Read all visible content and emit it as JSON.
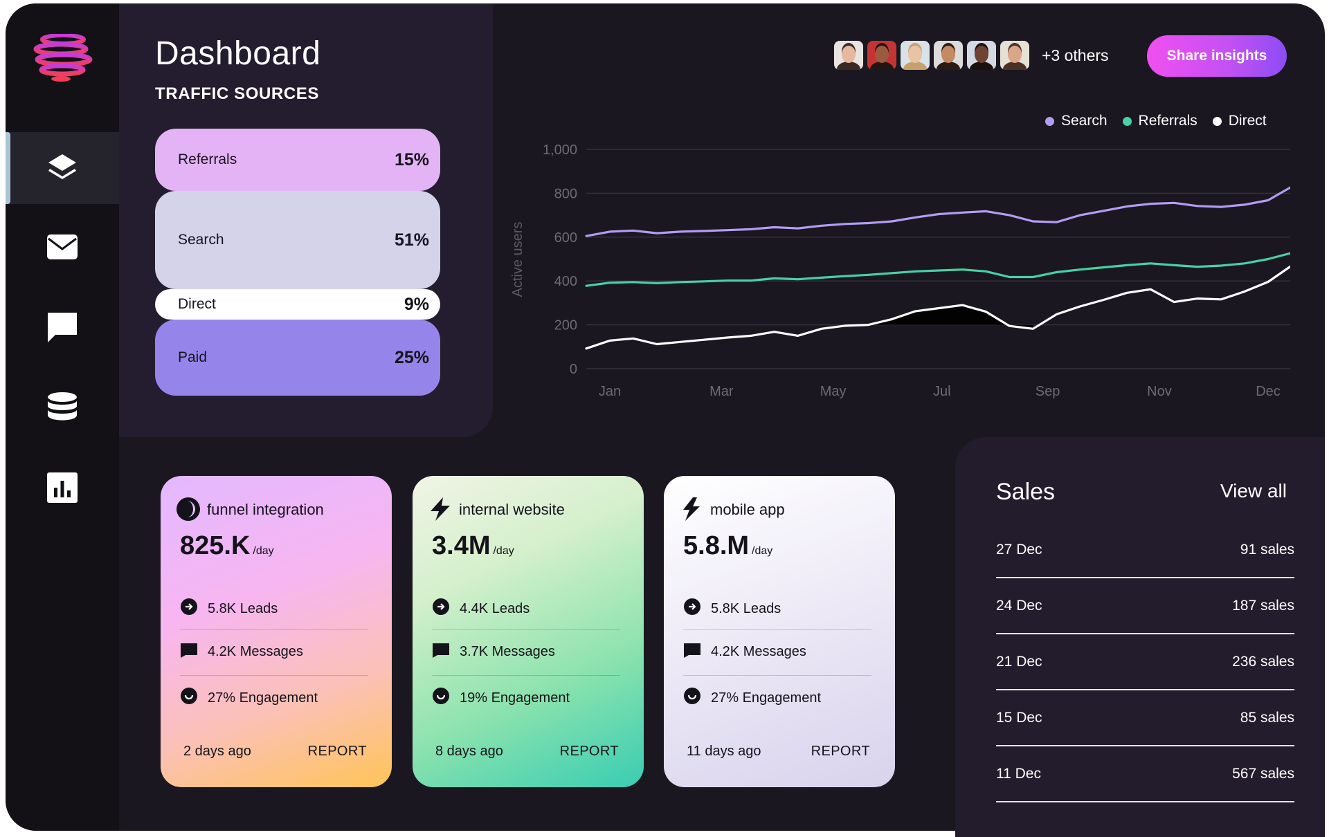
{
  "header": {
    "title": "Dashboard",
    "section": "TRAFFIC SOURCES",
    "others": "+3 others",
    "share_label": "Share insights"
  },
  "avatars": [
    {
      "skin": "#e7b8a0",
      "hair": "#3b2a22",
      "bg": "#e9e4e0"
    },
    {
      "skin": "#9c5b3e",
      "hair": "#221612",
      "bg": "#c43434"
    },
    {
      "skin": "#e9c3a6",
      "hair": "#c7a06b",
      "bg": "#d9e2e8"
    },
    {
      "skin": "#c58a62",
      "hair": "#2a1c14",
      "bg": "#dcdcdc"
    },
    {
      "skin": "#6e4431",
      "hair": "#1c120d",
      "bg": "#d3dae4"
    },
    {
      "skin": "#d9a689",
      "hair": "#4a3126",
      "bg": "#e6e0d6"
    }
  ],
  "traffic_sources": [
    {
      "name": "Referrals",
      "pct": "15%",
      "color": "#e4b3f6"
    },
    {
      "name": "Search",
      "pct": "51%",
      "color": "#d4d3ea"
    },
    {
      "name": "Direct",
      "pct": "9%",
      "color": "#ffffff"
    },
    {
      "name": "Paid",
      "pct": "25%",
      "color": "#9585ea"
    }
  ],
  "legend": [
    {
      "name": "Search",
      "color": "#b39cf4"
    },
    {
      "name": "Referrals",
      "color": "#45d2a5"
    },
    {
      "name": "Direct",
      "color": "#ffffff"
    }
  ],
  "chart_data": {
    "type": "line",
    "ylabel": "Active users",
    "ylim": [
      0,
      1000
    ],
    "yticks": [
      "0",
      "200",
      "400",
      "600",
      "800",
      "1,000"
    ],
    "xticks": [
      "Jan",
      "Mar",
      "May",
      "Jul",
      "Sep",
      "Nov",
      "Dec"
    ],
    "x_range": [
      0,
      12
    ],
    "series": [
      {
        "name": "Search",
        "color": "#b39cf4",
        "x": [
          0,
          0.4,
          0.8,
          1.2,
          1.6,
          2,
          2.4,
          2.8,
          3.2,
          3.6,
          4,
          4.4,
          4.8,
          5.2,
          5.6,
          6,
          6.4,
          6.8,
          7.2,
          7.6,
          8,
          8.4,
          8.8,
          9.2,
          9.6,
          10,
          10.4,
          10.8,
          11.2,
          11.6,
          12
        ],
        "y": [
          605,
          625,
          630,
          618,
          625,
          628,
          632,
          636,
          645,
          640,
          652,
          660,
          664,
          672,
          690,
          705,
          712,
          718,
          700,
          672,
          668,
          700,
          720,
          740,
          752,
          756,
          742,
          738,
          748,
          768,
          830
        ]
      },
      {
        "name": "Referrals",
        "color": "#45d2a5",
        "x": [
          0,
          0.4,
          0.8,
          1.2,
          1.6,
          2,
          2.4,
          2.8,
          3.2,
          3.6,
          4,
          4.4,
          4.8,
          5.2,
          5.6,
          6,
          6.4,
          6.8,
          7.2,
          7.6,
          8,
          8.4,
          8.8,
          9.2,
          9.6,
          10,
          10.4,
          10.8,
          11.2,
          11.6,
          12
        ],
        "y": [
          378,
          392,
          395,
          390,
          395,
          398,
          402,
          402,
          412,
          408,
          415,
          422,
          428,
          436,
          444,
          448,
          452,
          444,
          418,
          418,
          440,
          452,
          462,
          472,
          480,
          472,
          465,
          470,
          480,
          500,
          528
        ]
      },
      {
        "name": "Direct",
        "color": "#ffffff",
        "x": [
          0,
          0.4,
          0.8,
          1.2,
          1.6,
          2,
          2.4,
          2.8,
          3.2,
          3.6,
          4,
          4.4,
          4.8,
          5.2,
          5.6,
          6,
          6.4,
          6.8,
          7.2,
          7.6,
          8,
          8.4,
          8.8,
          9.2,
          9.6,
          10,
          10.4,
          10.8,
          11.2,
          11.6,
          12
        ],
        "y": [
          92,
          128,
          138,
          112,
          122,
          132,
          142,
          150,
          168,
          150,
          182,
          196,
          200,
          226,
          262,
          276,
          290,
          260,
          195,
          182,
          248,
          284,
          314,
          346,
          362,
          304,
          320,
          316,
          352,
          396,
          470
        ]
      }
    ]
  },
  "cards": [
    {
      "title": "funnel integration",
      "value": "825.K",
      "unit": "/day",
      "leads": "5.8K Leads",
      "messages": "4.2K Messages",
      "engagement": "27% Engagement",
      "ago": "2 days ago",
      "report": "REPORT"
    },
    {
      "title": "internal website",
      "value": "3.4M",
      "unit": "/day",
      "leads": "4.4K Leads",
      "messages": "3.7K Messages",
      "engagement": "19% Engagement",
      "ago": "8 days ago",
      "report": "REPORT"
    },
    {
      "title": "mobile app",
      "value": "5.8.M",
      "unit": "/day",
      "leads": "5.8K Leads",
      "messages": "4.2K Messages",
      "engagement": "27% Engagement",
      "ago": "11 days ago",
      "report": "REPORT"
    }
  ],
  "sales": {
    "title": "Sales",
    "view_all": "View all",
    "rows": [
      {
        "date": "27 Dec",
        "count": "91 sales"
      },
      {
        "date": "24 Dec",
        "count": "187 sales"
      },
      {
        "date": "21 Dec",
        "count": "236 sales"
      },
      {
        "date": "15 Dec",
        "count": "85 sales"
      },
      {
        "date": "11 Dec",
        "count": "567 sales"
      }
    ]
  }
}
